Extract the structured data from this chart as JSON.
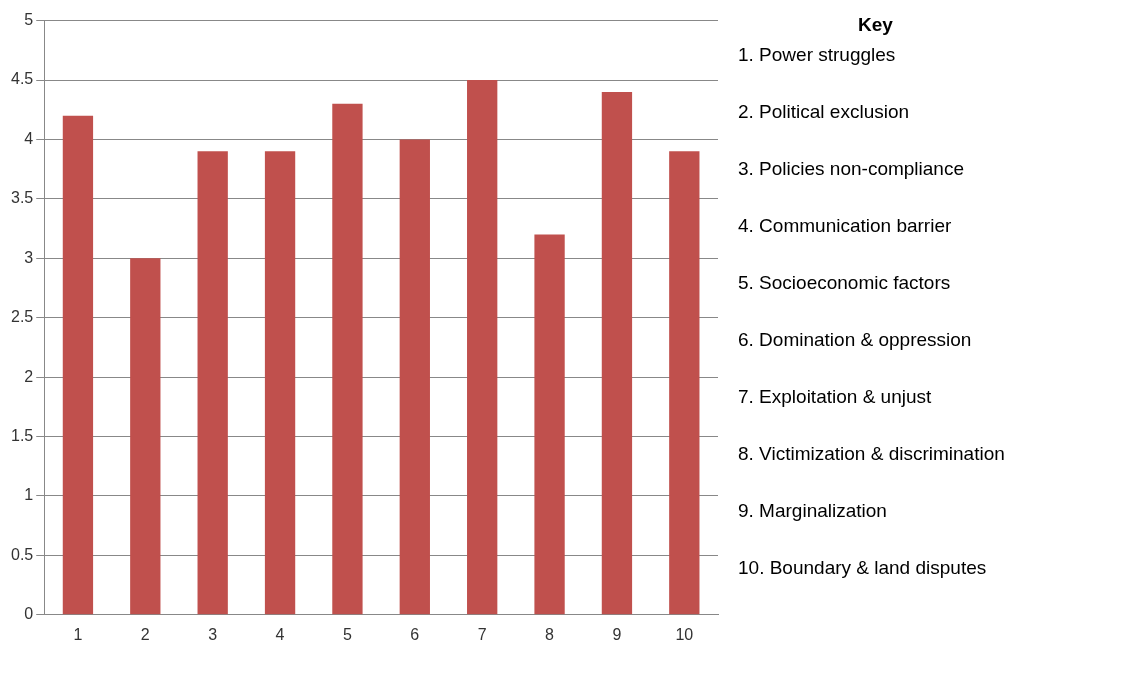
{
  "chart_data": {
    "type": "bar",
    "categories": [
      "1",
      "2",
      "3",
      "4",
      "5",
      "6",
      "7",
      "8",
      "9",
      "10"
    ],
    "values": [
      4.2,
      3.0,
      3.9,
      3.9,
      4.3,
      4.0,
      4.5,
      3.2,
      4.4,
      3.9
    ],
    "color": "#c0504d",
    "ylim": [
      0,
      5
    ],
    "yticks": [
      0,
      0.5,
      1,
      1.5,
      2,
      2.5,
      3,
      3.5,
      4,
      4.5,
      5
    ],
    "grid": "y",
    "legend": false,
    "legend_title": "Key",
    "annotations": [
      "1. Power struggles",
      "2. Political exclusion",
      "3. Policies non-compliance",
      "4. Communication barrier",
      "5. Socioeconomic factors",
      "6. Domination & oppression",
      "7. Exploitation & unjust",
      "8. Victimization & discrimination",
      "9. Marginalization",
      "10. Boundary & land disputes"
    ]
  }
}
